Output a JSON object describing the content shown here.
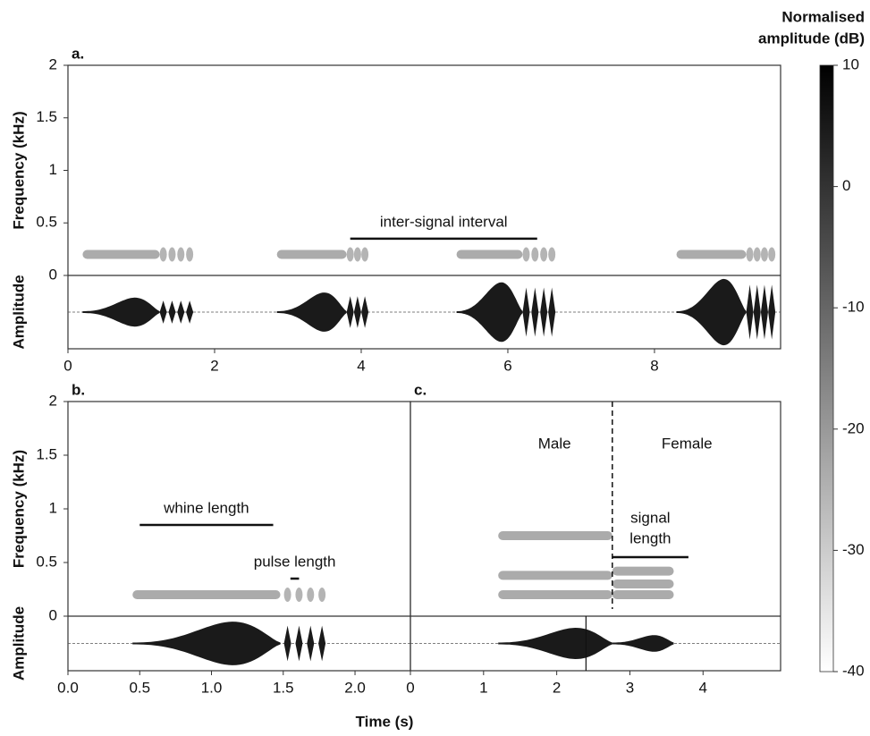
{
  "xlabel": "Time (s)",
  "chart_data": [
    {
      "type": "spectrogram",
      "label": "a.",
      "ylabel": "Frequency (kHz)",
      "amp_label": "Amplitude",
      "xlim": [
        0,
        9.72
      ],
      "xticks": [
        0,
        2,
        4,
        6,
        8
      ],
      "ylim": [
        0,
        2
      ],
      "yticks": [
        0,
        0.5,
        1,
        1.5,
        2
      ],
      "calls": [
        {
          "whine": [
            0.2,
            1.25
          ],
          "bands": [
            0.2
          ],
          "amp": 0.4,
          "pulses": [
            1.3,
            1.42,
            1.54,
            1.66
          ]
        },
        {
          "whine": [
            2.85,
            3.8
          ],
          "bands": [
            0.2
          ],
          "amp": 0.55,
          "pulses": [
            3.85,
            3.95,
            4.05
          ]
        },
        {
          "whine": [
            5.3,
            6.2
          ],
          "bands": [
            0.2
          ],
          "amp": 0.85,
          "pulses": [
            6.25,
            6.37,
            6.49,
            6.6
          ]
        },
        {
          "whine": [
            8.3,
            9.25
          ],
          "bands": [
            0.2
          ],
          "amp": 0.95,
          "pulses": [
            9.3,
            9.4,
            9.5,
            9.6
          ]
        }
      ],
      "annotations": [
        {
          "text": "inter-signal interval",
          "span": [
            3.85,
            6.4
          ],
          "y": 0.35
        }
      ]
    },
    {
      "type": "spectrogram",
      "label": "b.",
      "ylabel": "Frequency (kHz)",
      "amp_label": "Amplitude",
      "xlim": [
        0,
        2.386
      ],
      "xticks": [
        {
          "value": 0,
          "label": "0.0"
        },
        {
          "value": 0.5,
          "label": "0.5"
        },
        {
          "value": 1,
          "label": "1.0"
        },
        {
          "value": 1.5,
          "label": "1.5"
        },
        {
          "value": 2,
          "label": "2.0"
        }
      ],
      "ylim": [
        0,
        2
      ],
      "yticks": [
        0,
        0.5,
        1,
        1.5,
        2
      ],
      "calls": [
        {
          "whine": [
            0.45,
            1.48
          ],
          "bands": [
            0.2
          ],
          "amp": 0.85,
          "pulses": [
            1.53,
            1.61,
            1.69,
            1.77
          ]
        }
      ],
      "annotations": [
        {
          "text": "whine length",
          "span": [
            0.5,
            1.43
          ],
          "y": 0.85
        },
        {
          "text": "pulse length",
          "span": [
            1.55,
            1.61
          ],
          "y": 0.35
        }
      ]
    },
    {
      "type": "spectrogram",
      "label": "c.",
      "xlim": [
        0,
        5.06
      ],
      "xticks": [
        0,
        1,
        2,
        3,
        4
      ],
      "ylim": [
        0,
        2
      ],
      "divider": 2.76,
      "marker": 2.4,
      "calls": [
        {
          "whine": [
            1.2,
            2.76
          ],
          "bands": [
            0.2,
            0.38,
            0.75
          ],
          "amp": 0.6
        },
        {
          "whine": [
            2.76,
            3.6
          ],
          "bands": [
            0.2,
            0.3,
            0.42
          ],
          "amp": 0.3
        }
      ],
      "annotations": [
        {
          "text": "Male",
          "x": 1.97,
          "y": 1.6
        },
        {
          "text": "Female",
          "x": 3.78,
          "y": 1.6
        },
        {
          "lines": [
            "signal",
            "length"
          ],
          "span": [
            2.76,
            3.8
          ],
          "y": 0.55
        }
      ]
    },
    {
      "type": "colorbar",
      "title": [
        "Normalised",
        "amplitude (dB)"
      ],
      "ylim": [
        -40,
        10
      ],
      "yticks": [
        10,
        0,
        -10,
        -20,
        -30,
        -40
      ],
      "colors": [
        "#ffffff",
        "#000000"
      ]
    }
  ]
}
